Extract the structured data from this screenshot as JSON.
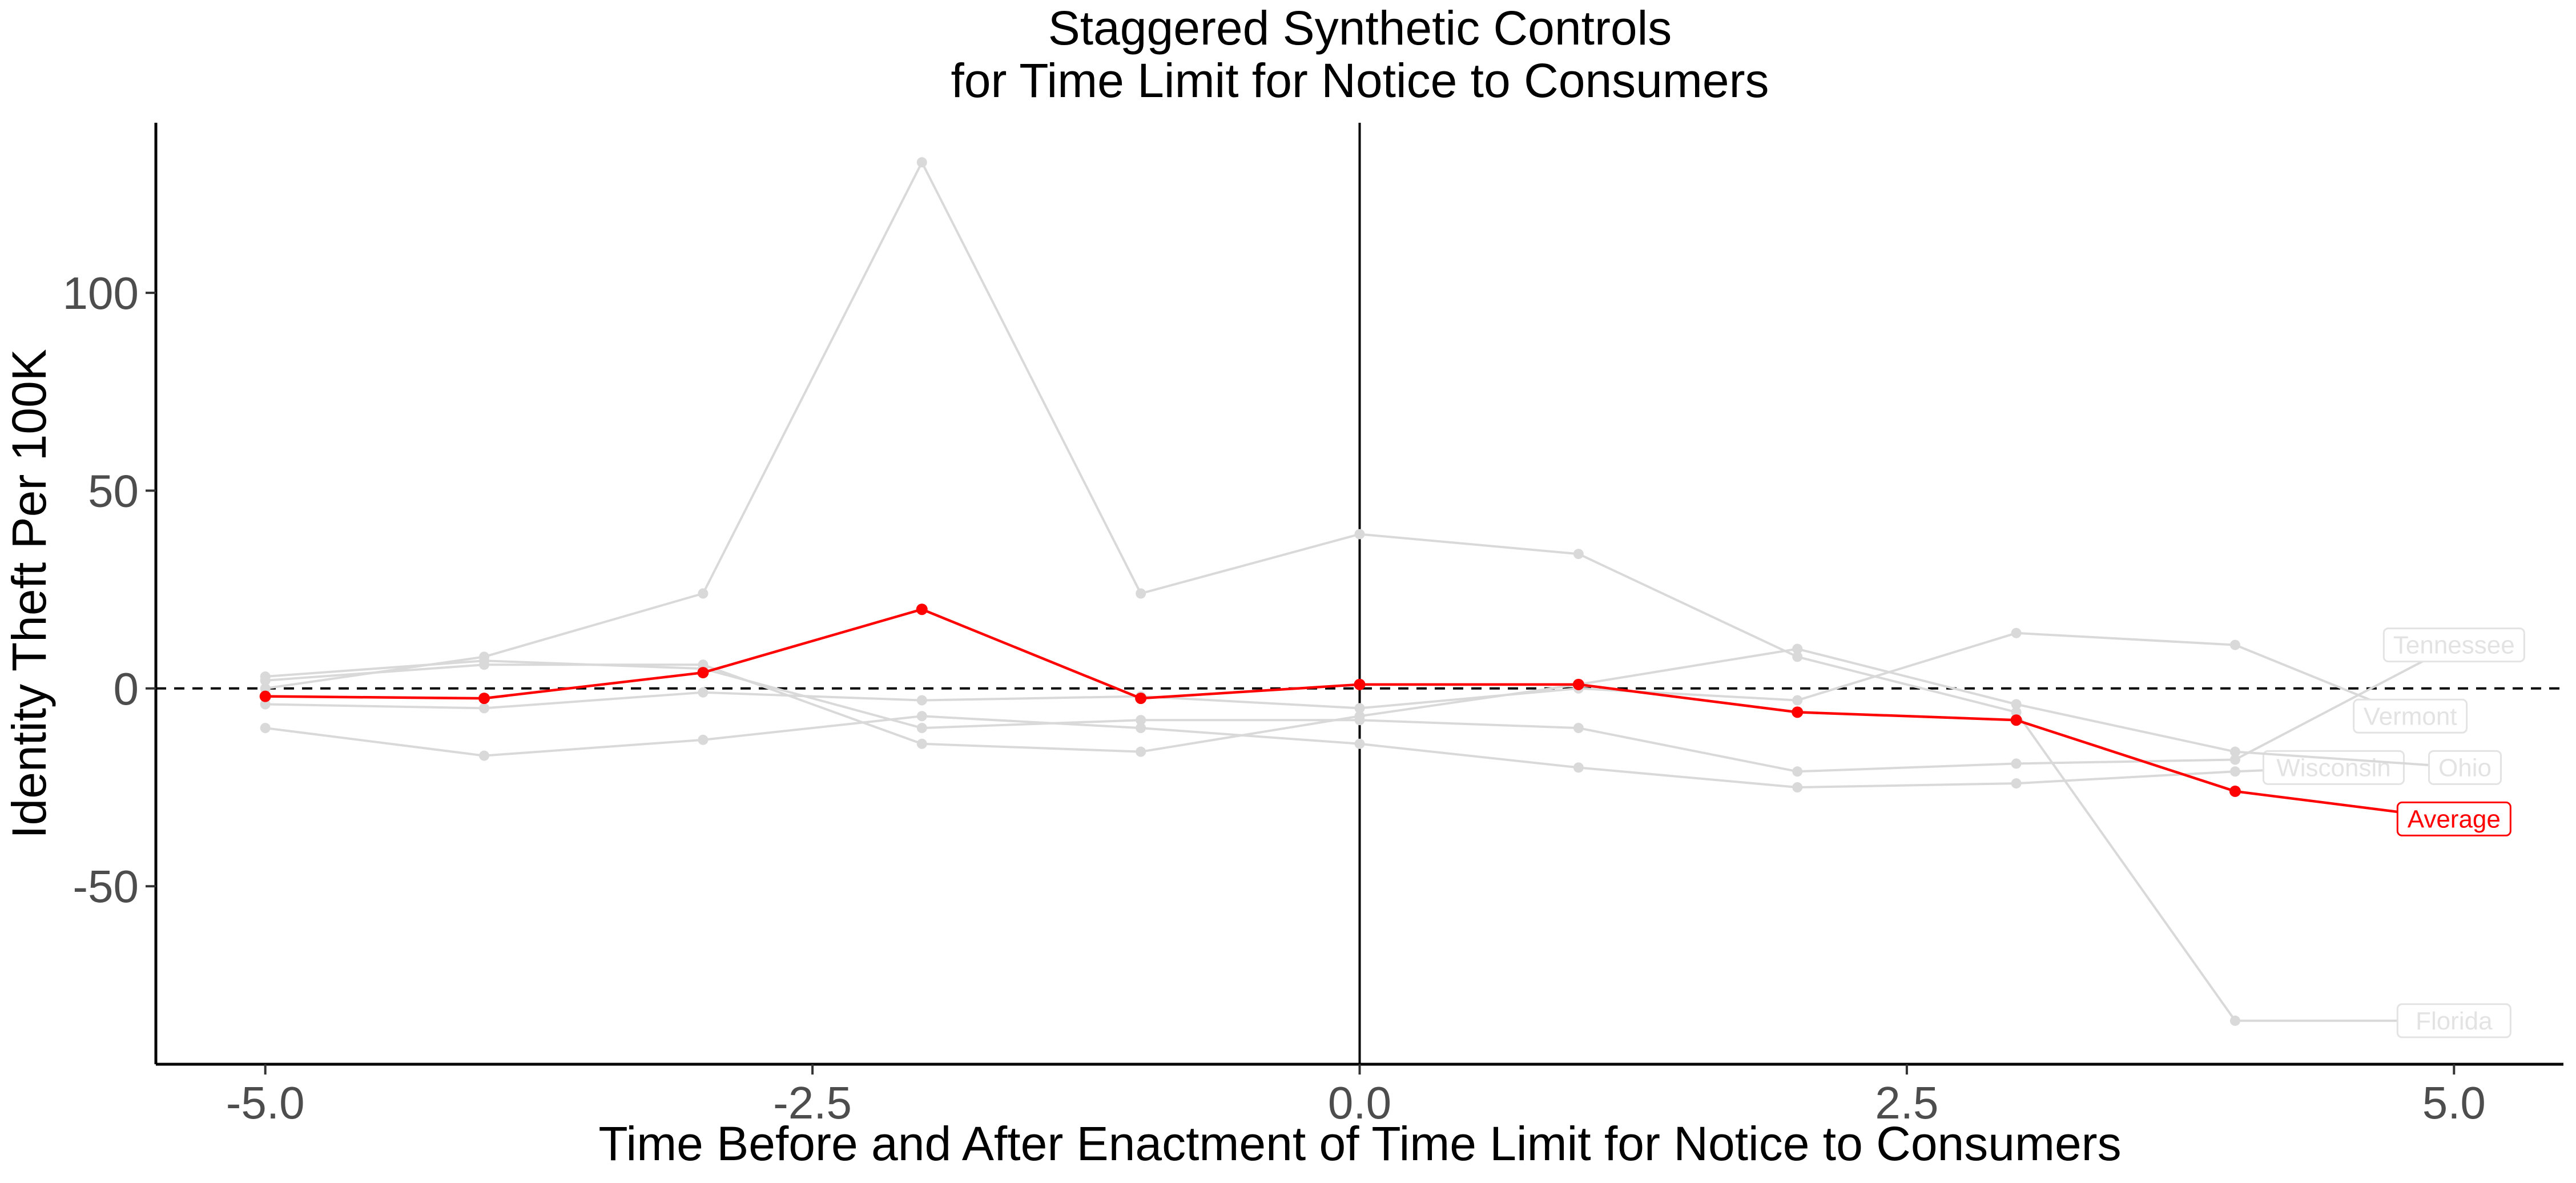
{
  "chart_data": {
    "type": "line",
    "title_lines": [
      "Staggered Synthetic Controls",
      "for Time Limit for Notice to Consumers"
    ],
    "xlabel": "Time Before and After Enactment of Time Limit for Notice to Consumers",
    "ylabel": "Identity Theft Per 100K",
    "xlim": [
      -5.5,
      5.5
    ],
    "ylim": [
      -95,
      143
    ],
    "x_ticks": [
      -5,
      -2.5,
      0,
      2.5,
      5
    ],
    "x_tick_labels": [
      "-5.0",
      "-2.5",
      "0.0",
      "2.5",
      "5.0"
    ],
    "y_ticks": [
      -50,
      0,
      50,
      100
    ],
    "y_tick_labels": [
      "-50",
      "0",
      "50",
      "100"
    ],
    "x": [
      -5,
      -4,
      -3,
      -2,
      -1,
      0,
      1,
      2,
      3,
      4
    ],
    "vline_x": 0,
    "hline_y": 0,
    "grid": false,
    "colors": {
      "treated_average": "#ff0000",
      "states": "#d9d9d9",
      "state_labels": "#e3e3e3",
      "axis": "#000000"
    },
    "series": [
      {
        "name": "Florida",
        "role": "state",
        "values": [
          0,
          8,
          24,
          133,
          24,
          39,
          34,
          8,
          -6,
          -84
        ],
        "label_x": 5.0,
        "label_y": -84
      },
      {
        "name": "Tennessee",
        "role": "state",
        "values": [
          3,
          7,
          5,
          -10,
          -8,
          -8,
          -10,
          -21,
          -19,
          -18
        ],
        "label_x": 5.0,
        "label_y": 11
      },
      {
        "name": "Vermont",
        "role": "state",
        "values": [
          -4,
          -5,
          -1,
          -3,
          -2,
          -5,
          0,
          -3,
          14,
          11
        ],
        "label_x": 4.8,
        "label_y": -7
      },
      {
        "name": "Wisconsin",
        "role": "state",
        "values": [
          -10,
          -17,
          -13,
          -7,
          -10,
          -14,
          -20,
          -25,
          -24,
          -21
        ],
        "label_x": 4.45,
        "label_y": -20
      },
      {
        "name": "Ohio",
        "role": "state",
        "values": [
          2,
          6,
          6,
          -14,
          -16,
          -7,
          1,
          10,
          -4,
          -16
        ],
        "label_x": 5.05,
        "label_y": -20
      },
      {
        "name": "Average",
        "role": "average",
        "values": [
          -2,
          -2.5,
          4,
          20,
          -2.5,
          1,
          1,
          -6,
          -8,
          -26
        ],
        "label_x": 5.0,
        "label_y": -33
      }
    ]
  }
}
